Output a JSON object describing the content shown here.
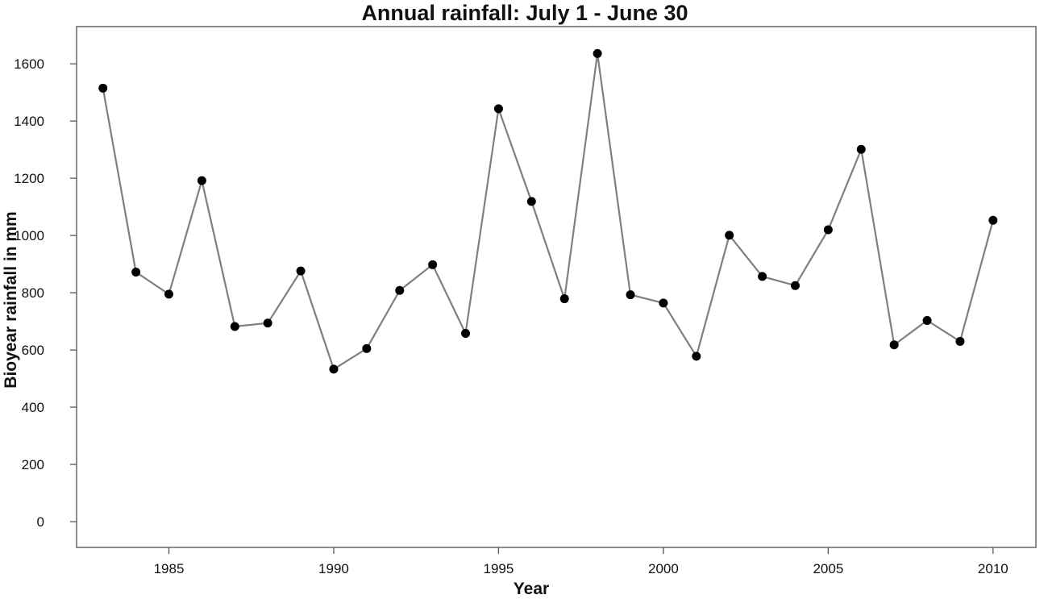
{
  "chart_data": {
    "type": "line",
    "title": "Annual rainfall: July 1 - June 30",
    "xlabel": "Year",
    "ylabel": "Bioyear rainfall in mm",
    "xlim": [
      1982.2,
      2011.3
    ],
    "ylim": [
      -90,
      1730
    ],
    "x_ticks": [
      1985,
      1990,
      1995,
      2000,
      2005,
      2010
    ],
    "y_ticks": [
      0,
      200,
      400,
      600,
      800,
      1000,
      1200,
      1400,
      1600
    ],
    "grid": false,
    "legend": false,
    "series": [
      {
        "x": [
          1983,
          1984,
          1985,
          1986,
          1987,
          1988,
          1989,
          1990,
          1991,
          1992,
          1993,
          1994,
          1995,
          1996,
          1997,
          1998,
          1999,
          2000,
          2001,
          2002,
          2003,
          2004,
          2005,
          2006,
          2007,
          2008,
          2009,
          2010
        ],
        "y": [
          1515,
          872,
          795,
          1192,
          682,
          694,
          876,
          533,
          605,
          808,
          898,
          658,
          1443,
          1119,
          779,
          1636,
          793,
          764,
          578,
          1001,
          857,
          825,
          1020,
          1301,
          618,
          703,
          630,
          1053
        ],
        "line_color": "#7f7f7f",
        "marker_color": "#000000"
      }
    ]
  }
}
